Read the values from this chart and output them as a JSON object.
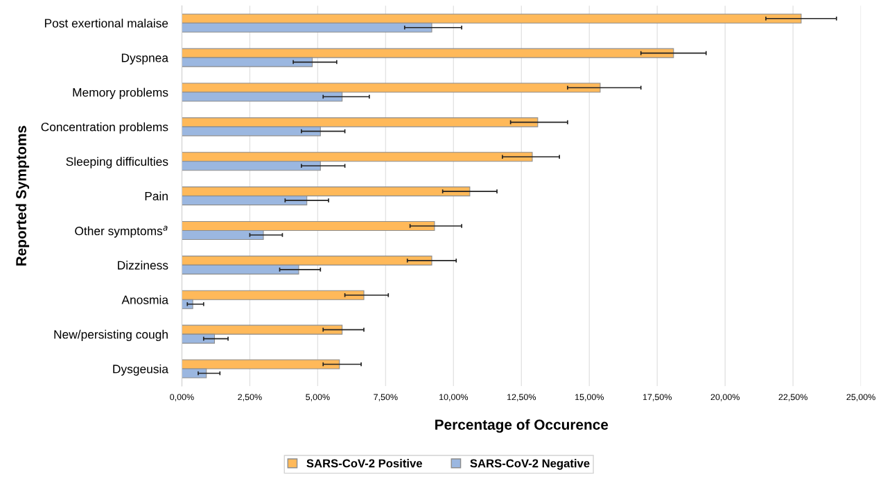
{
  "chart_data": {
    "type": "bar",
    "orientation": "horizontal",
    "xlabel": "Percentage of Occurence",
    "ylabel": "Reported Symptoms",
    "categories": [
      "Post exertional malaise",
      "Dyspnea",
      "Memory problems",
      "Concentration problems",
      "Sleeping difficulties",
      "Pain",
      "Other symptoms$^{a}$",
      "Dizziness",
      "Anosmia",
      "New/persisting cough",
      "Dysgeusia"
    ],
    "series": [
      {
        "name": "SARS-CoV-2 Positive",
        "color": "#ffb95a",
        "values": [
          22.8,
          18.1,
          15.4,
          13.1,
          12.9,
          10.6,
          9.3,
          9.2,
          6.7,
          5.9,
          5.8
        ],
        "errors": [
          [
            21.5,
            24.1
          ],
          [
            16.9,
            19.3
          ],
          [
            14.2,
            16.9
          ],
          [
            12.1,
            14.2
          ],
          [
            11.8,
            13.9
          ],
          [
            9.6,
            11.6
          ],
          [
            8.4,
            10.3
          ],
          [
            8.3,
            10.1
          ],
          [
            6.0,
            7.6
          ],
          [
            5.2,
            6.7
          ],
          [
            5.2,
            6.6
          ]
        ]
      },
      {
        "name": "SARS-CoV-2 Negative",
        "color": "#9bb7e0",
        "values": [
          9.2,
          4.8,
          5.9,
          5.1,
          5.1,
          4.6,
          3.0,
          4.3,
          0.4,
          1.2,
          0.9
        ],
        "errors": [
          [
            8.2,
            10.3
          ],
          [
            4.1,
            5.7
          ],
          [
            5.2,
            6.9
          ],
          [
            4.4,
            6.0
          ],
          [
            4.4,
            6.0
          ],
          [
            3.8,
            5.4
          ],
          [
            2.5,
            3.7
          ],
          [
            3.6,
            5.1
          ],
          [
            0.2,
            0.8
          ],
          [
            0.8,
            1.7
          ],
          [
            0.6,
            1.4
          ]
        ]
      }
    ],
    "xlim": [
      0,
      25
    ],
    "xticks": [
      {
        "value": 0,
        "label": "0,00%"
      },
      {
        "value": 2.5,
        "label": "2,50%"
      },
      {
        "value": 5,
        "label": "5,00%"
      },
      {
        "value": 7.5,
        "label": "7,50%"
      },
      {
        "value": 10,
        "label": "10,00%"
      },
      {
        "value": 12.5,
        "label": "12,50%"
      },
      {
        "value": 15,
        "label": "15,00%"
      },
      {
        "value": 17.5,
        "label": "17,50%"
      },
      {
        "value": 20,
        "label": "20,00%"
      },
      {
        "value": 22.5,
        "label": "22,50%"
      },
      {
        "value": 25,
        "label": "25,00%"
      }
    ],
    "grid": "x",
    "legend": "bottom"
  }
}
